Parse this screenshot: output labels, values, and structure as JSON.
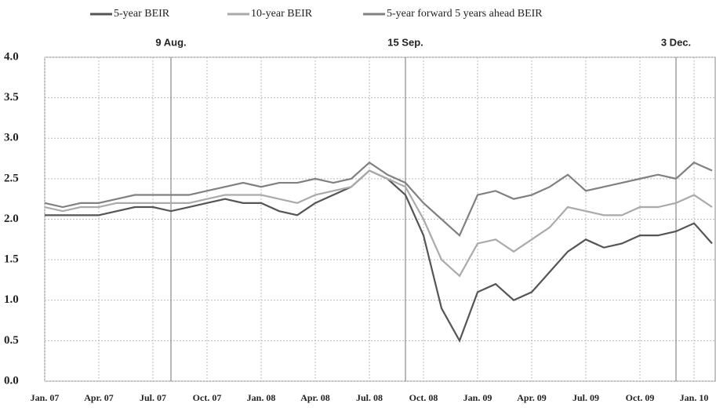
{
  "chart_data": {
    "type": "line",
    "x": [
      "2007-01",
      "2007-02",
      "2007-03",
      "2007-04",
      "2007-05",
      "2007-06",
      "2007-07",
      "2007-08",
      "2007-09",
      "2007-10",
      "2007-11",
      "2007-12",
      "2008-01",
      "2008-02",
      "2008-03",
      "2008-04",
      "2008-05",
      "2008-06",
      "2008-07",
      "2008-08",
      "2008-09",
      "2008-10",
      "2008-11",
      "2008-12",
      "2009-01",
      "2009-02",
      "2009-03",
      "2009-04",
      "2009-05",
      "2009-06",
      "2009-07",
      "2009-08",
      "2009-09",
      "2009-10",
      "2009-11",
      "2009-12",
      "2010-01",
      "2010-02"
    ],
    "series": [
      {
        "name": "5-year BEIR",
        "color": "#555555",
        "values": [
          2.05,
          2.05,
          2.05,
          2.05,
          2.1,
          2.15,
          2.15,
          2.1,
          2.15,
          2.2,
          2.25,
          2.2,
          2.2,
          2.1,
          2.05,
          2.2,
          2.3,
          2.4,
          2.6,
          2.5,
          2.3,
          1.8,
          0.9,
          0.5,
          1.1,
          1.2,
          1.0,
          1.1,
          1.35,
          1.6,
          1.75,
          1.65,
          1.7,
          1.8,
          1.8,
          1.85,
          1.95,
          1.7
        ]
      },
      {
        "name": "10-year BEIR",
        "color": "#aaaaaa",
        "values": [
          2.15,
          2.1,
          2.15,
          2.15,
          2.2,
          2.2,
          2.2,
          2.2,
          2.2,
          2.25,
          2.3,
          2.3,
          2.3,
          2.25,
          2.2,
          2.3,
          2.35,
          2.4,
          2.6,
          2.5,
          2.4,
          2.0,
          1.5,
          1.3,
          1.7,
          1.75,
          1.6,
          1.75,
          1.9,
          2.15,
          2.1,
          2.05,
          2.05,
          2.15,
          2.15,
          2.2,
          2.3,
          2.15
        ]
      },
      {
        "name": "5-year forward 5 years ahead BEIR",
        "color": "#808080",
        "values": [
          2.2,
          2.15,
          2.2,
          2.2,
          2.25,
          2.3,
          2.3,
          2.3,
          2.3,
          2.35,
          2.4,
          2.45,
          2.4,
          2.45,
          2.45,
          2.5,
          2.45,
          2.5,
          2.7,
          2.55,
          2.45,
          2.2,
          2.0,
          1.8,
          2.3,
          2.35,
          2.25,
          2.3,
          2.4,
          2.55,
          2.35,
          2.4,
          2.45,
          2.5,
          2.55,
          2.5,
          2.7,
          2.6
        ]
      }
    ],
    "xlim": [
      "2007-01",
      "2010-02"
    ],
    "xticks": [
      {
        "value": "2007-01",
        "label": "Jan. 07"
      },
      {
        "value": "2007-04",
        "label": "Apr. 07"
      },
      {
        "value": "2007-07",
        "label": "Jul. 07"
      },
      {
        "value": "2007-10",
        "label": "Oct. 07"
      },
      {
        "value": "2008-01",
        "label": "Jan. 08"
      },
      {
        "value": "2008-04",
        "label": "Apr. 08"
      },
      {
        "value": "2008-07",
        "label": "Jul. 08"
      },
      {
        "value": "2008-10",
        "label": "Oct. 08"
      },
      {
        "value": "2009-01",
        "label": "Jan. 09"
      },
      {
        "value": "2009-04",
        "label": "Apr. 09"
      },
      {
        "value": "2009-07",
        "label": "Jul. 09"
      },
      {
        "value": "2009-10",
        "label": "Oct. 09"
      },
      {
        "value": "2010-01",
        "label": "Jan. 10"
      }
    ],
    "ylim": [
      0,
      4
    ],
    "yticks": [
      {
        "value": 0,
        "label": "0.0"
      },
      0.5,
      {
        "value": 1,
        "label": "1.0"
      },
      1.5,
      {
        "value": 2,
        "label": "2.0"
      },
      2.5,
      {
        "value": 3,
        "label": "3.0"
      },
      3.5,
      {
        "value": 4,
        "label": "4.0"
      }
    ],
    "grid": true,
    "annotations": [
      {
        "label": "9 Aug.",
        "x": "2007-08"
      },
      {
        "label": "15 Sep.",
        "x": "2008-09"
      },
      {
        "label": "3 Dec.",
        "x": "2009-12"
      }
    ]
  }
}
